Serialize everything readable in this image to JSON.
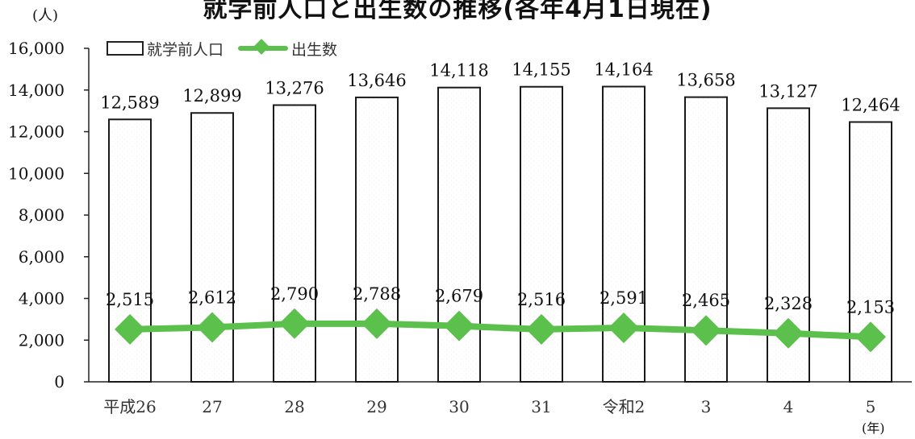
{
  "chart_data": {
    "type": "bar",
    "title": "就学前人口と出生数の推移(各年4月1日現在)",
    "y_unit": "(人)",
    "x_unit": "(年)",
    "categories": [
      "平成26",
      "27",
      "28",
      "29",
      "30",
      "31",
      "令和2",
      "3",
      "4",
      "5"
    ],
    "series": [
      {
        "name": "就学前人口",
        "type": "bar",
        "values": [
          12589,
          12899,
          13276,
          13646,
          14118,
          14155,
          14164,
          13658,
          13127,
          12464
        ],
        "labels": [
          "12,589",
          "12,899",
          "13,276",
          "13,646",
          "14,118",
          "14,155",
          "14,164",
          "13,658",
          "13,127",
          "12,464"
        ],
        "color": "#ffffff"
      },
      {
        "name": "出生数",
        "type": "line",
        "values": [
          2515,
          2612,
          2790,
          2788,
          2679,
          2516,
          2591,
          2465,
          2328,
          2153
        ],
        "labels": [
          "2,515",
          "2,612",
          "2,790",
          "2,788",
          "2,679",
          "2,516",
          "2,591",
          "2,465",
          "2,328",
          "2,153"
        ],
        "color": "#5cc04d"
      }
    ],
    "ylim": [
      0,
      16000
    ],
    "yticks": [
      0,
      2000,
      4000,
      6000,
      8000,
      10000,
      12000,
      14000,
      16000
    ],
    "ytick_labels": [
      "0",
      "2,000",
      "4,000",
      "6,000",
      "8,000",
      "10,000",
      "12,000",
      "14,000",
      "16,000"
    ],
    "grid": false,
    "legend": "top-left"
  }
}
